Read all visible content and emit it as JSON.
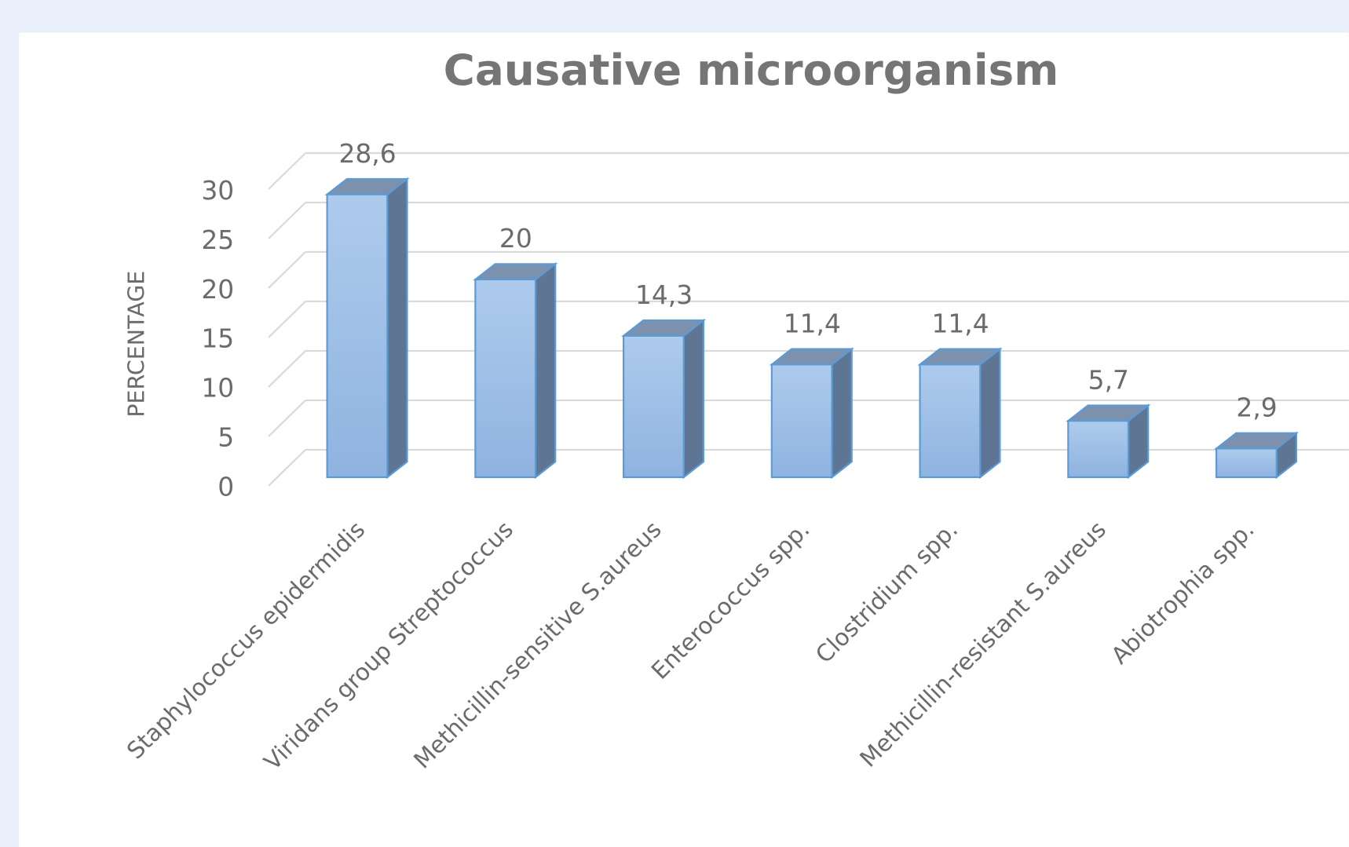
{
  "chart_data": {
    "type": "bar3d",
    "title": "Causative microorganism",
    "y_label": "PERCENTAGE",
    "categories": [
      "Staphylococcus epidermidis",
      "Viridans group Streptococcus",
      "Methicillin-sensitive S.aureus",
      "Enterococcus spp.",
      "Clostridium spp.",
      "Methicillin-resistant S.aureus",
      "Abiotrophia spp."
    ],
    "values": [
      28.6,
      20,
      14.3,
      11.4,
      11.4,
      5.7,
      2.9
    ],
    "value_labels": [
      "28,6",
      "20",
      "14,3",
      "11,4",
      "11,4",
      "5,7",
      "2,9"
    ],
    "color": "#9dbfe6",
    "ylim": [
      0,
      30
    ],
    "yticks": [
      0,
      5,
      10,
      15,
      20,
      25,
      30
    ],
    "grid": true
  }
}
